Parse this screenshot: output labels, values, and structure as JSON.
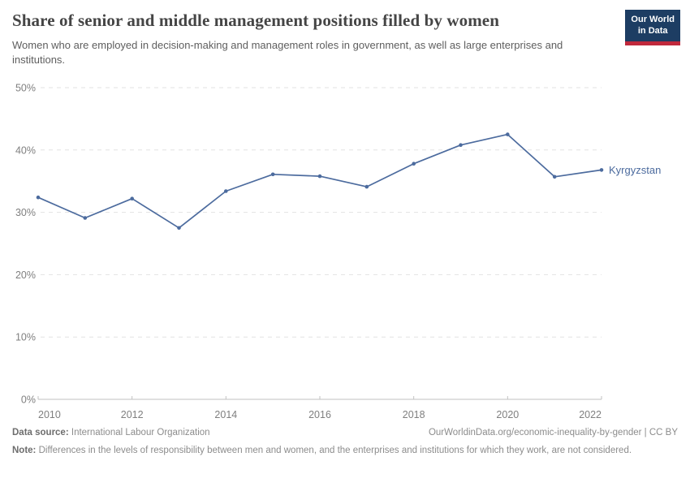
{
  "header": {
    "title": "Share of senior and middle management positions filled by women",
    "subtitle": "Women who are employed in decision-making and management roles in government, as well as large enterprises and institutions.",
    "logo_line1": "Our World",
    "logo_line2": "in Data"
  },
  "chart_data": {
    "type": "line",
    "title": "Share of senior and middle management positions filled by women",
    "x": [
      2010,
      2011,
      2012,
      2013,
      2014,
      2015,
      2016,
      2017,
      2018,
      2019,
      2020,
      2021,
      2022
    ],
    "series": [
      {
        "name": "Kyrgyzstan",
        "color": "#4c6b9e",
        "values": [
          32.4,
          29.1,
          32.2,
          27.5,
          33.4,
          36.1,
          35.8,
          34.1,
          37.8,
          40.8,
          42.5,
          35.7,
          36.8
        ]
      }
    ],
    "xlim": [
      2010,
      2022
    ],
    "ylim": [
      0,
      50
    ],
    "xticks": [
      2010,
      2012,
      2014,
      2016,
      2018,
      2020,
      2022
    ],
    "yticks": [
      0,
      10,
      20,
      30,
      40,
      50
    ],
    "ytick_suffix": "%",
    "xlabel": "",
    "ylabel": "",
    "grid": "horizontal-dashed",
    "legend_position": "line-end-label"
  },
  "footer": {
    "datasource_label": "Data source:",
    "datasource_value": "International Labour Organization",
    "attribution": "OurWorldinData.org/economic-inequality-by-gender | CC BY",
    "note_label": "Note:",
    "note_text": "Differences in the levels of responsibility between men and women, and the enterprises and institutions for which they work, are not considered."
  },
  "colors": {
    "line": "#4c6b9e",
    "logo_bg": "#1d3d63",
    "logo_bar": "#c0293c",
    "grid": "#e2e2e2",
    "axis": "#c2c2c2",
    "tick_text": "#7f7f7f"
  }
}
